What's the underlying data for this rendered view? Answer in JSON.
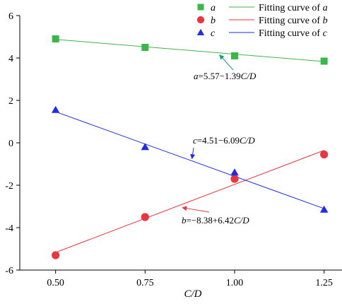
{
  "chart_data": {
    "type": "scatter",
    "xlabel": "C/D",
    "ylabel": "",
    "xlim": [
      0.4,
      1.3
    ],
    "ylim": [
      -6,
      6
    ],
    "x_ticks": [
      "0.50",
      "0.75",
      "1.00",
      "1.25"
    ],
    "y_ticks": [
      "6",
      "4",
      "2",
      "0",
      "-2",
      "-4",
      "-6"
    ],
    "x": [
      0.5,
      0.75,
      1.0,
      1.25
    ],
    "grid": false,
    "legend_position": "top-right",
    "series": [
      {
        "name": "a",
        "marker": "square",
        "color": "#3cb54a",
        "values": [
          4.9,
          4.5,
          4.1,
          3.85
        ],
        "fit": {
          "name": "Fitting curve of a",
          "intercept": 5.57,
          "slope": -1.39,
          "equation": "a=5.57−1.39C/D"
        }
      },
      {
        "name": "b",
        "marker": "circle",
        "color": "#e8373f",
        "values": [
          -5.3,
          -3.5,
          -1.7,
          -0.55
        ],
        "fit": {
          "name": "Fitting curve of b",
          "intercept": -8.38,
          "slope": 6.42,
          "equation": "b=−8.38+6.42C/D"
        }
      },
      {
        "name": "c",
        "marker": "triangle",
        "color": "#1f2ce0",
        "values": [
          1.55,
          -0.2,
          -1.4,
          -3.15
        ],
        "fit": {
          "name": "Fitting curve of c",
          "intercept": 4.51,
          "slope": -6.09,
          "equation": "c=4.51−6.09C/D"
        }
      }
    ],
    "arrow_color": "#1a9b7a"
  }
}
